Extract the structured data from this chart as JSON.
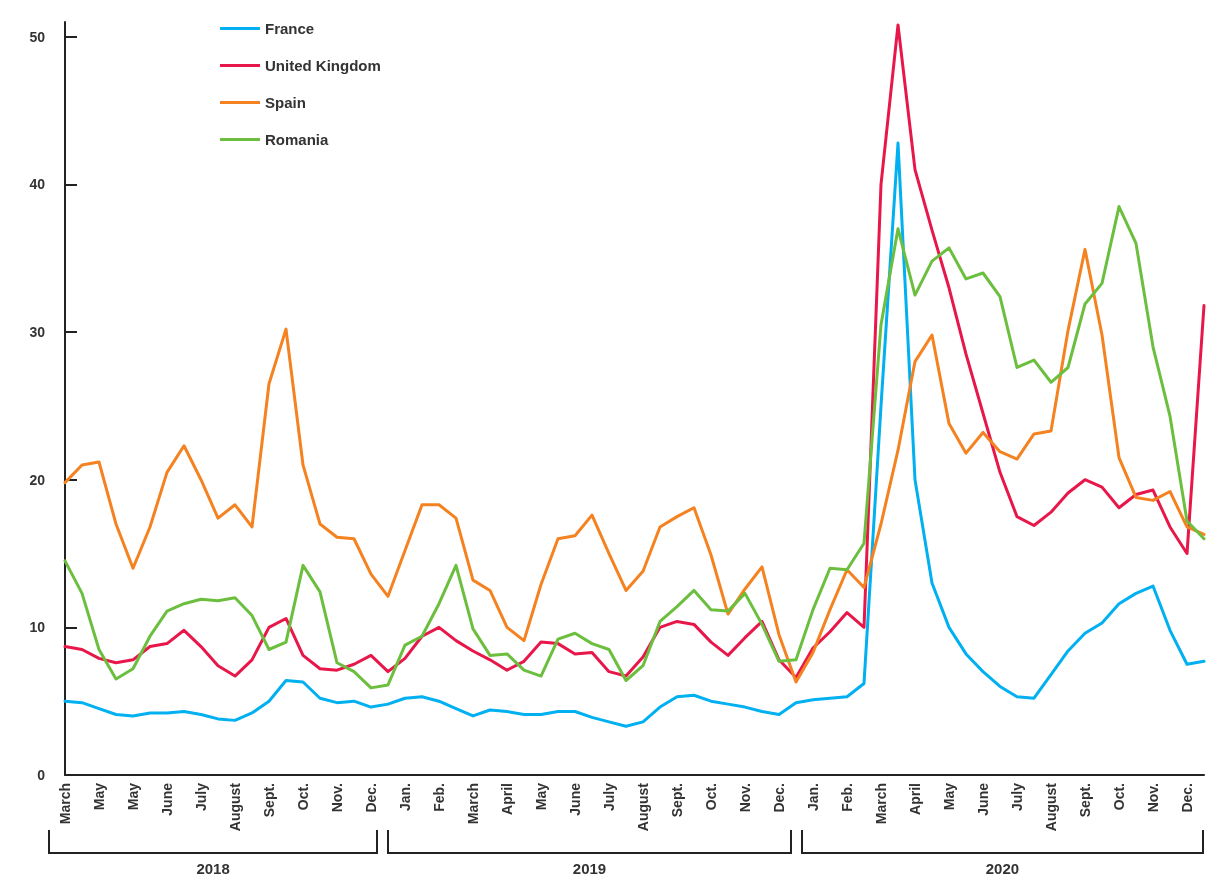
{
  "chart_data": {
    "type": "line",
    "categories": [
      "March",
      null,
      "May",
      null,
      "May",
      null,
      "June",
      null,
      "July",
      null,
      "August",
      null,
      "Sept.",
      null,
      "Oct.",
      null,
      "Nov.",
      null,
      "Dec.",
      null,
      "Jan.",
      null,
      "Feb.",
      null,
      "March",
      null,
      "April",
      null,
      "May",
      null,
      "June",
      null,
      "July",
      null,
      "August",
      null,
      "Sept.",
      null,
      "Oct.",
      null,
      "Nov.",
      null,
      "Dec.",
      null,
      "Jan.",
      null,
      "Feb.",
      null,
      "March",
      null,
      "April",
      null,
      "May",
      null,
      "June",
      null,
      "July",
      null,
      "August",
      null,
      "Sept.",
      null,
      "Oct.",
      null,
      "Nov.",
      null,
      "Dec.",
      null
    ],
    "ylim": [
      0,
      51
    ],
    "yticks": [
      0,
      10,
      20,
      30,
      40,
      50
    ],
    "grid": false,
    "legend": "top left",
    "marker": "none",
    "line_style": "solid",
    "annotations": [
      "2018",
      "2019",
      "2020"
    ],
    "series": [
      {
        "name": "France",
        "color": "#00b0f0",
        "values": [
          5.0,
          4.9,
          4.5,
          4.1,
          4.0,
          4.2,
          4.2,
          4.3,
          4.1,
          3.8,
          3.7,
          4.2,
          5.0,
          6.4,
          6.3,
          5.2,
          4.9,
          5.0,
          4.6,
          4.8,
          5.2,
          5.3,
          5.0,
          4.5,
          4.0,
          4.4,
          4.3,
          4.1,
          4.1,
          4.3,
          4.3,
          3.9,
          3.6,
          3.3,
          3.6,
          4.6,
          5.3,
          5.4,
          5.0,
          4.8,
          4.6,
          4.3,
          4.1,
          4.9,
          5.1,
          5.2,
          5.3,
          6.2,
          25,
          42.8,
          20,
          13,
          10,
          8.2,
          7.0,
          6.0,
          5.3,
          5.2,
          6.8,
          8.4,
          9.6,
          10.3,
          11.6,
          12.3,
          12.8,
          9.8,
          7.5,
          7.7
        ]
      },
      {
        "name": "United Kingdom",
        "color": "#e8174a",
        "values": [
          8.7,
          8.5,
          7.9,
          7.6,
          7.8,
          8.7,
          8.9,
          9.8,
          8.7,
          7.4,
          6.7,
          7.8,
          10.0,
          10.6,
          8.1,
          7.2,
          7.1,
          7.5,
          8.1,
          7.0,
          7.9,
          9.4,
          10.0,
          9.1,
          8.4,
          7.8,
          7.1,
          7.7,
          9.0,
          8.9,
          8.2,
          8.3,
          7.0,
          6.7,
          8.0,
          10.0,
          10.4,
          10.2,
          9.0,
          8.1,
          9.3,
          10.4,
          7.8,
          6.6,
          8.6,
          9.7,
          11.0,
          10.0,
          40,
          50.8,
          41,
          36.9,
          33,
          28.5,
          24.5,
          20.5,
          17.5,
          16.9,
          17.8,
          19.1,
          20.0,
          19.5,
          18.1,
          19.0,
          19.3,
          16.8,
          15.0,
          31.8
        ]
      },
      {
        "name": "Spain",
        "color": "#f58220",
        "values": [
          19.8,
          21,
          21.2,
          17,
          14,
          16.8,
          20.5,
          22.3,
          20,
          17.4,
          18.3,
          16.8,
          26.5,
          30.2,
          21,
          17,
          16.1,
          16,
          13.6,
          12.1,
          15.2,
          18.3,
          18.3,
          17.4,
          13.2,
          12.5,
          10,
          9.1,
          12.9,
          16,
          16.2,
          17.6,
          15,
          12.5,
          13.8,
          16.8,
          17.5,
          18.1,
          14.9,
          10.9,
          12.6,
          14.1,
          9.5,
          6.3,
          8.3,
          11.2,
          13.9,
          12.7,
          17,
          22,
          28,
          29.8,
          23.8,
          21.8,
          23.2,
          21.9,
          21.4,
          23.1,
          23.3,
          30.1,
          35.6,
          29.8,
          21.5,
          18.8,
          18.6,
          19.2,
          16.8,
          16.3
        ]
      },
      {
        "name": "Romania",
        "color": "#6cbf3e",
        "values": [
          14.5,
          12.3,
          8.5,
          6.5,
          7.2,
          9.4,
          11.1,
          11.6,
          11.9,
          11.8,
          12,
          10.8,
          8.5,
          9,
          14.2,
          12.4,
          7.6,
          7,
          5.9,
          6.1,
          8.8,
          9.4,
          11.6,
          14.2,
          9.9,
          8.1,
          8.2,
          7.1,
          6.7,
          9.2,
          9.6,
          8.9,
          8.5,
          6.4,
          7.4,
          10.4,
          11.4,
          12.5,
          11.2,
          11.1,
          12.3,
          10.2,
          7.7,
          7.8,
          11.2,
          14,
          13.9,
          15.7,
          30.5,
          37,
          32.5,
          34.8,
          35.7,
          33.6,
          34,
          32.4,
          27.6,
          28.1,
          26.6,
          27.6,
          31.9,
          33.3,
          38.5,
          36,
          29,
          24.3,
          17.2,
          16
        ]
      }
    ]
  }
}
